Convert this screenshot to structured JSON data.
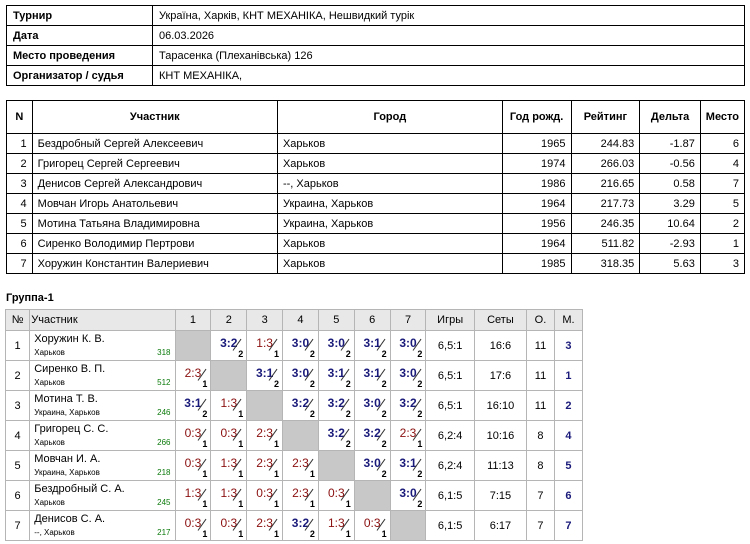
{
  "info": [
    {
      "key": "Турнир",
      "value": "Україна, Харків, КНТ МЕХАНІКА, Нешвидкий турік"
    },
    {
      "key": "Дата",
      "value": "06.03.2026"
    },
    {
      "key": "Место проведения",
      "value": "Тарасенка (Плеханівська) 126"
    },
    {
      "key": "Организатор / судья",
      "value": "КНТ МЕХАНІКА,"
    }
  ],
  "participants": {
    "headers": [
      "N",
      "Участник",
      "Город",
      "Год рожд.",
      "Рейтинг",
      "Дельта",
      "Место"
    ],
    "rows": [
      [
        "1",
        "Бездробный Сергей Алексеевич",
        "Харьков",
        "1965",
        "244.83",
        "-1.87",
        "6"
      ],
      [
        "2",
        "Григорец Сергей Сергеевич",
        "Харьков",
        "1974",
        "266.03",
        "-0.56",
        "4"
      ],
      [
        "3",
        "Денисов Сергей Александрович",
        "--, Харьков",
        "1986",
        "216.65",
        "0.58",
        "7"
      ],
      [
        "4",
        "Мовчан Игорь Анатольевич",
        "Украина, Харьков",
        "1964",
        "217.73",
        "3.29",
        "5"
      ],
      [
        "5",
        "Мотина Татьяна Владимировна",
        "Украина, Харьков",
        "1956",
        "246.35",
        "10.64",
        "2"
      ],
      [
        "6",
        "Сиренко Володимир Пертрови",
        "Харьков",
        "1964",
        "511.82",
        "-2.93",
        "1"
      ],
      [
        "7",
        "Хоружин Константин Валериевич",
        "Харьков",
        "1985",
        "318.35",
        "5.63",
        "3"
      ]
    ]
  },
  "group": {
    "title": "Группа-1",
    "headers": [
      "№",
      "Участник",
      "1",
      "2",
      "3",
      "4",
      "5",
      "6",
      "7",
      "Игры",
      "Сеты",
      "О.",
      "М."
    ],
    "rows": [
      {
        "n": "1",
        "name": "Хоружин К. В.",
        "city": "Харьков",
        "rating": "318",
        "results": [
          null,
          [
            "3:2",
            "2"
          ],
          [
            "1:3",
            "1"
          ],
          [
            "3:0",
            "2"
          ],
          [
            "3:0",
            "2"
          ],
          [
            "3:1",
            "2"
          ],
          [
            "3:0",
            "2"
          ]
        ],
        "games": "6,5:1",
        "sets": "16:6",
        "points": "11",
        "place": "3"
      },
      {
        "n": "2",
        "name": "Сиренко В. П.",
        "city": "Харьков",
        "rating": "512",
        "results": [
          [
            "2:3",
            "1"
          ],
          null,
          [
            "3:1",
            "2"
          ],
          [
            "3:0",
            "2"
          ],
          [
            "3:1",
            "2"
          ],
          [
            "3:1",
            "2"
          ],
          [
            "3:0",
            "2"
          ]
        ],
        "games": "6,5:1",
        "sets": "17:6",
        "points": "11",
        "place": "1"
      },
      {
        "n": "3",
        "name": "Мотина Т. В.",
        "city": "Украина, Харьков",
        "rating": "246",
        "results": [
          [
            "3:1",
            "2"
          ],
          [
            "1:3",
            "1"
          ],
          null,
          [
            "3:2",
            "2"
          ],
          [
            "3:2",
            "2"
          ],
          [
            "3:0",
            "2"
          ],
          [
            "3:2",
            "2"
          ]
        ],
        "games": "6,5:1",
        "sets": "16:10",
        "points": "11",
        "place": "2"
      },
      {
        "n": "4",
        "name": "Григорец С. С.",
        "city": "Харьков",
        "rating": "266",
        "results": [
          [
            "0:3",
            "1"
          ],
          [
            "0:3",
            "1"
          ],
          [
            "2:3",
            "1"
          ],
          null,
          [
            "3:2",
            "2"
          ],
          [
            "3:2",
            "2"
          ],
          [
            "2:3",
            "1"
          ]
        ],
        "games": "6,2:4",
        "sets": "10:16",
        "points": "8",
        "place": "4"
      },
      {
        "n": "5",
        "name": "Мовчан И. А.",
        "city": "Украина, Харьков",
        "rating": "218",
        "results": [
          [
            "0:3",
            "1"
          ],
          [
            "1:3",
            "1"
          ],
          [
            "2:3",
            "1"
          ],
          [
            "2:3",
            "1"
          ],
          null,
          [
            "3:0",
            "2"
          ],
          [
            "3:1",
            "2"
          ]
        ],
        "games": "6,2:4",
        "sets": "11:13",
        "points": "8",
        "place": "5"
      },
      {
        "n": "6",
        "name": "Бездробный С. А.",
        "city": "Харьков",
        "rating": "245",
        "results": [
          [
            "1:3",
            "1"
          ],
          [
            "1:3",
            "1"
          ],
          [
            "0:3",
            "1"
          ],
          [
            "2:3",
            "1"
          ],
          [
            "0:3",
            "1"
          ],
          null,
          [
            "3:0",
            "2"
          ]
        ],
        "games": "6,1:5",
        "sets": "7:15",
        "points": "7",
        "place": "6"
      },
      {
        "n": "7",
        "name": "Денисов С. А.",
        "city": "--, Харьков",
        "rating": "217",
        "results": [
          [
            "0:3",
            "1"
          ],
          [
            "0:3",
            "1"
          ],
          [
            "2:3",
            "1"
          ],
          [
            "3:2",
            "2"
          ],
          [
            "1:3",
            "1"
          ],
          [
            "0:3",
            "1"
          ],
          null
        ],
        "games": "6,1:5",
        "sets": "6:17",
        "points": "7",
        "place": "7"
      }
    ]
  }
}
